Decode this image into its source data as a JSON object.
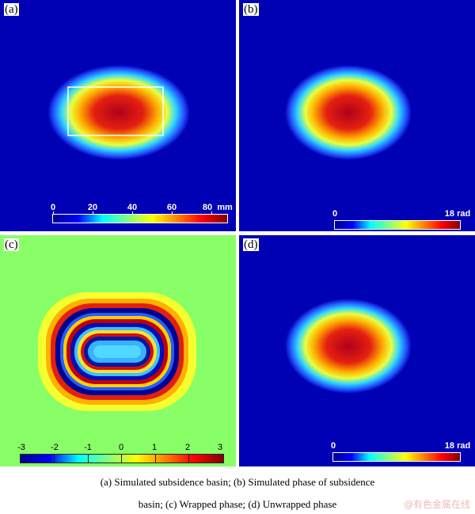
{
  "panels": {
    "a": {
      "label": "(a)",
      "colorbar": {
        "ticks": [
          "0",
          "20",
          "40",
          "60",
          "80"
        ],
        "unit": "mm"
      }
    },
    "b": {
      "label": "(b)",
      "colorbar": {
        "min_label": "0",
        "max_label": "18 rad"
      }
    },
    "c": {
      "label": "(c)",
      "colorbar": {
        "ticks": [
          "-3",
          "-2",
          "-1",
          "0",
          "1",
          "2",
          "3"
        ]
      }
    },
    "d": {
      "label": "(d)",
      "colorbar": {
        "min_label": "0",
        "max_label": "18 rad"
      }
    }
  },
  "caption": {
    "line1": "(a) Simulated subsidence basin; (b) Simulated phase of subsidence",
    "line2": "basin; (c) Wrapped phase; (d) Unwrapped phase"
  },
  "watermark": "@有色金属在线",
  "colors": {
    "background": "#0000b4",
    "wrapped_bg": "#88ff66",
    "divider": "#ffffff"
  }
}
